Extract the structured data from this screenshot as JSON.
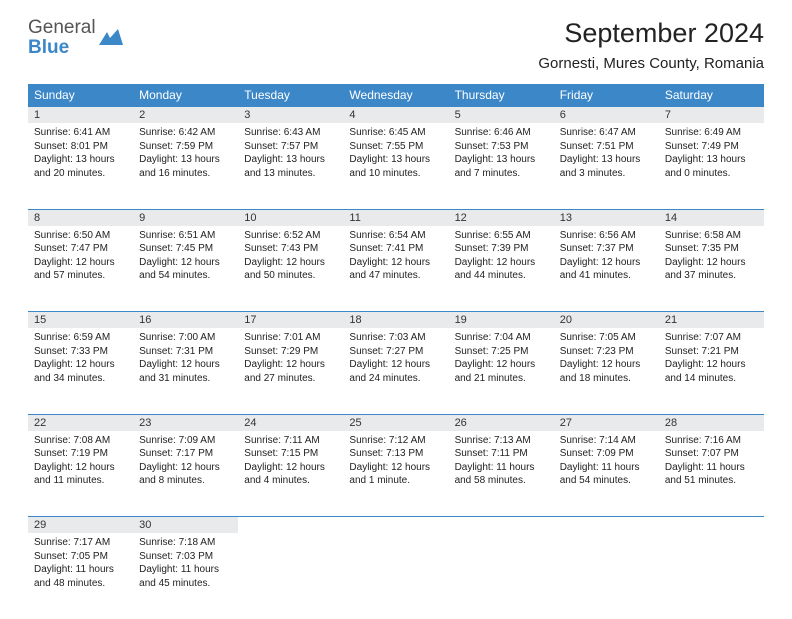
{
  "logo": {
    "line1": "General",
    "line2": "Blue"
  },
  "title": "September 2024",
  "location": "Gornesti, Mures County, Romania",
  "colors": {
    "accent": "#3b87c8",
    "daynum_bg": "#e9eaeb",
    "text": "#222222",
    "bg": "#ffffff"
  },
  "font": {
    "family": "Arial",
    "header_size": 27,
    "location_size": 15,
    "dayhead_size": 12,
    "cell_size": 10
  },
  "day_headers": [
    "Sunday",
    "Monday",
    "Tuesday",
    "Wednesday",
    "Thursday",
    "Friday",
    "Saturday"
  ],
  "weeks": [
    [
      {
        "n": "1",
        "sr": "6:41 AM",
        "ss": "8:01 PM",
        "dl": "13 hours and 20 minutes."
      },
      {
        "n": "2",
        "sr": "6:42 AM",
        "ss": "7:59 PM",
        "dl": "13 hours and 16 minutes."
      },
      {
        "n": "3",
        "sr": "6:43 AM",
        "ss": "7:57 PM",
        "dl": "13 hours and 13 minutes."
      },
      {
        "n": "4",
        "sr": "6:45 AM",
        "ss": "7:55 PM",
        "dl": "13 hours and 10 minutes."
      },
      {
        "n": "5",
        "sr": "6:46 AM",
        "ss": "7:53 PM",
        "dl": "13 hours and 7 minutes."
      },
      {
        "n": "6",
        "sr": "6:47 AM",
        "ss": "7:51 PM",
        "dl": "13 hours and 3 minutes."
      },
      {
        "n": "7",
        "sr": "6:49 AM",
        "ss": "7:49 PM",
        "dl": "13 hours and 0 minutes."
      }
    ],
    [
      {
        "n": "8",
        "sr": "6:50 AM",
        "ss": "7:47 PM",
        "dl": "12 hours and 57 minutes."
      },
      {
        "n": "9",
        "sr": "6:51 AM",
        "ss": "7:45 PM",
        "dl": "12 hours and 54 minutes."
      },
      {
        "n": "10",
        "sr": "6:52 AM",
        "ss": "7:43 PM",
        "dl": "12 hours and 50 minutes."
      },
      {
        "n": "11",
        "sr": "6:54 AM",
        "ss": "7:41 PM",
        "dl": "12 hours and 47 minutes."
      },
      {
        "n": "12",
        "sr": "6:55 AM",
        "ss": "7:39 PM",
        "dl": "12 hours and 44 minutes."
      },
      {
        "n": "13",
        "sr": "6:56 AM",
        "ss": "7:37 PM",
        "dl": "12 hours and 41 minutes."
      },
      {
        "n": "14",
        "sr": "6:58 AM",
        "ss": "7:35 PM",
        "dl": "12 hours and 37 minutes."
      }
    ],
    [
      {
        "n": "15",
        "sr": "6:59 AM",
        "ss": "7:33 PM",
        "dl": "12 hours and 34 minutes."
      },
      {
        "n": "16",
        "sr": "7:00 AM",
        "ss": "7:31 PM",
        "dl": "12 hours and 31 minutes."
      },
      {
        "n": "17",
        "sr": "7:01 AM",
        "ss": "7:29 PM",
        "dl": "12 hours and 27 minutes."
      },
      {
        "n": "18",
        "sr": "7:03 AM",
        "ss": "7:27 PM",
        "dl": "12 hours and 24 minutes."
      },
      {
        "n": "19",
        "sr": "7:04 AM",
        "ss": "7:25 PM",
        "dl": "12 hours and 21 minutes."
      },
      {
        "n": "20",
        "sr": "7:05 AM",
        "ss": "7:23 PM",
        "dl": "12 hours and 18 minutes."
      },
      {
        "n": "21",
        "sr": "7:07 AM",
        "ss": "7:21 PM",
        "dl": "12 hours and 14 minutes."
      }
    ],
    [
      {
        "n": "22",
        "sr": "7:08 AM",
        "ss": "7:19 PM",
        "dl": "12 hours and 11 minutes."
      },
      {
        "n": "23",
        "sr": "7:09 AM",
        "ss": "7:17 PM",
        "dl": "12 hours and 8 minutes."
      },
      {
        "n": "24",
        "sr": "7:11 AM",
        "ss": "7:15 PM",
        "dl": "12 hours and 4 minutes."
      },
      {
        "n": "25",
        "sr": "7:12 AM",
        "ss": "7:13 PM",
        "dl": "12 hours and 1 minute."
      },
      {
        "n": "26",
        "sr": "7:13 AM",
        "ss": "7:11 PM",
        "dl": "11 hours and 58 minutes."
      },
      {
        "n": "27",
        "sr": "7:14 AM",
        "ss": "7:09 PM",
        "dl": "11 hours and 54 minutes."
      },
      {
        "n": "28",
        "sr": "7:16 AM",
        "ss": "7:07 PM",
        "dl": "11 hours and 51 minutes."
      }
    ],
    [
      {
        "n": "29",
        "sr": "7:17 AM",
        "ss": "7:05 PM",
        "dl": "11 hours and 48 minutes."
      },
      {
        "n": "30",
        "sr": "7:18 AM",
        "ss": "7:03 PM",
        "dl": "11 hours and 45 minutes."
      },
      null,
      null,
      null,
      null,
      null
    ]
  ],
  "labels": {
    "sunrise": "Sunrise:",
    "sunset": "Sunset:",
    "daylight": "Daylight:"
  }
}
